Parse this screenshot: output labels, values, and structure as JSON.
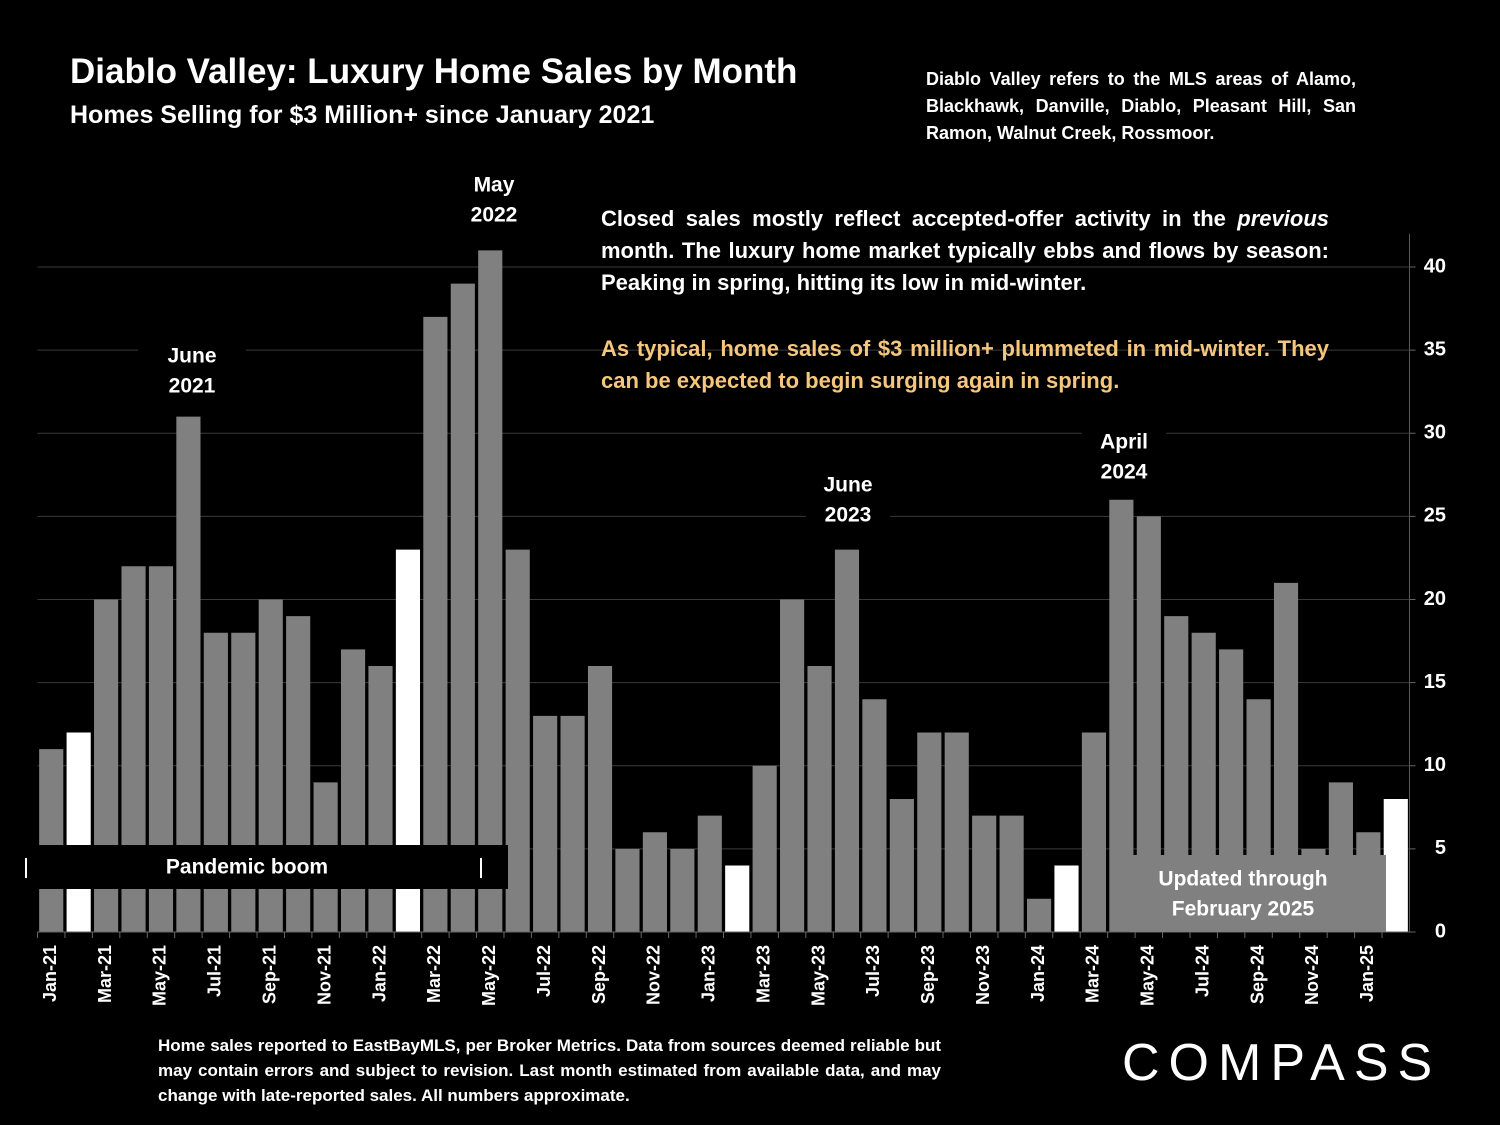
{
  "chart_data": {
    "type": "bar",
    "title": "Diablo Valley:  Luxury Home Sales by Month",
    "subtitle": "Homes Selling for $3 Million+ since January 2021",
    "note": "Diablo Valley refers to the MLS areas of Alamo, Blackhawk, Danville, Diablo, Pleasant Hill, San Ramon, Walnut Creek, Rossmoor.",
    "commentary": [
      [
        "Closed sales mostly reflect accepted-offer activity in the ",
        "previous",
        " month. The luxury home market typically ebbs and flows by season: Peaking in spring, hitting its low in mid-winter."
      ],
      [
        "As typical, home sales of $3 million+ plummeted in mid-winter. They can be expected to begin surging again in spring."
      ]
    ],
    "categories": [
      "Jan-21",
      null,
      "Mar-21",
      null,
      "May-21",
      null,
      "Jul-21",
      null,
      "Sep-21",
      null,
      "Nov-21",
      null,
      "Jan-22",
      null,
      "Mar-22",
      null,
      "May-22",
      null,
      "Jul-22",
      null,
      "Sep-22",
      null,
      "Nov-22",
      null,
      "Jan-23",
      null,
      "Mar-23",
      null,
      "May-23",
      null,
      "Jul-23",
      null,
      "Sep-23",
      null,
      "Nov-23",
      null,
      "Jan-24",
      null,
      "Mar-24",
      null,
      "May-24",
      null,
      "Jul-24",
      null,
      "Sep-24",
      null,
      "Nov-24",
      null,
      "Jan-25",
      null
    ],
    "values": [
      11,
      12,
      20,
      22,
      22,
      31,
      18,
      18,
      20,
      19,
      9,
      17,
      16,
      23,
      37,
      39,
      41,
      23,
      13,
      13,
      16,
      5,
      6,
      5,
      7,
      4,
      10,
      20,
      16,
      23,
      14,
      8,
      12,
      12,
      7,
      7,
      2,
      4,
      12,
      26,
      25,
      19,
      18,
      17,
      14,
      21,
      5,
      9,
      6,
      8
    ],
    "colors": [
      "#808080",
      "#ffffff",
      "#808080",
      "#808080",
      "#808080",
      "#808080",
      "#808080",
      "#808080",
      "#808080",
      "#808080",
      "#808080",
      "#808080",
      "#808080",
      "#ffffff",
      "#808080",
      "#808080",
      "#808080",
      "#808080",
      "#808080",
      "#808080",
      "#808080",
      "#808080",
      "#808080",
      "#808080",
      "#808080",
      "#ffffff",
      "#808080",
      "#808080",
      "#808080",
      "#808080",
      "#808080",
      "#808080",
      "#808080",
      "#808080",
      "#808080",
      "#808080",
      "#808080",
      "#ffffff",
      "#808080",
      "#808080",
      "#808080",
      "#808080",
      "#808080",
      "#808080",
      "#808080",
      "#808080",
      "#808080",
      "#808080",
      "#808080",
      "#ffffff"
    ],
    "ylim": [
      0,
      42
    ],
    "yticks": [
      0,
      5,
      10,
      15,
      20,
      25,
      30,
      35,
      40
    ],
    "grid": true,
    "annotations": [
      [
        "June",
        "2021"
      ],
      [
        "May",
        "2022"
      ],
      [
        "June",
        "2023"
      ],
      [
        "April",
        "2024"
      ]
    ],
    "period_label": "Pandemic boom",
    "updated_label": [
      "Updated through",
      "February 2025"
    ],
    "footer": "Home sales reported to EastBayMLS, per Broker Metrics. Data from sources deemed reliable but may contain errors and subject to revision.  Last month estimated from available data, and may change with late-reported sales. All numbers approximate.",
    "logo": "COMPASS"
  }
}
